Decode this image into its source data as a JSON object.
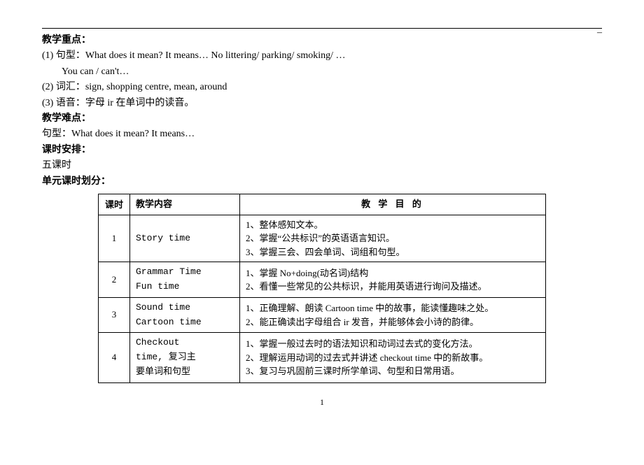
{
  "top_dash": "–",
  "headings": {
    "key_points": "教学重点：",
    "difficulties": "教学难点：",
    "schedule": "课时安排：",
    "unit_plan": "单元课时划分："
  },
  "key_points": {
    "line1": "(1) 句型：What does it mean? It means…   No littering/ parking/ smoking/ …",
    "line1b": "You can / can't…",
    "line2": "(2) 词汇：sign, shopping centre, mean, around",
    "line3": "(3) 语音：字母 ir 在单词中的读音。"
  },
  "difficulties": {
    "line": "句型：What does it mean? It means…"
  },
  "schedule": {
    "text": "五课时"
  },
  "table": {
    "headers": {
      "lesson": "课时",
      "content": "教学内容",
      "goal": "教 学 目 的"
    },
    "rows": [
      {
        "num": "1",
        "content": "Story time",
        "goal": "1、整体感知文本。\n2、掌握“公共标识”的英语语言知识。\n3、掌握三会、四会单词、词组和句型。"
      },
      {
        "num": "2",
        "content": "Grammar Time\nFun time",
        "goal": "1、掌握 No+doing(动名词)结构\n2、看懂一些常见的公共标识，并能用英语进行询问及描述。"
      },
      {
        "num": "3",
        "content": "Sound time\nCartoon time",
        "goal": "1、正确理解、朗读 Cartoon time 中的故事，能读懂趣味之处。\n2、能正确读出字母组合 ir 发音，并能够体会小诗的韵律。"
      },
      {
        "num": "4",
        "content": "Checkout\ntime, 复习主\n要单词和句型",
        "goal": "1、掌握一般过去时的语法知识和动词过去式的变化方法。\n2、理解运用动词的过去式并讲述 checkout time 中的新故事。\n3、复习与巩固前三课时所学单词、句型和日常用语。"
      }
    ]
  },
  "page_number": "1"
}
